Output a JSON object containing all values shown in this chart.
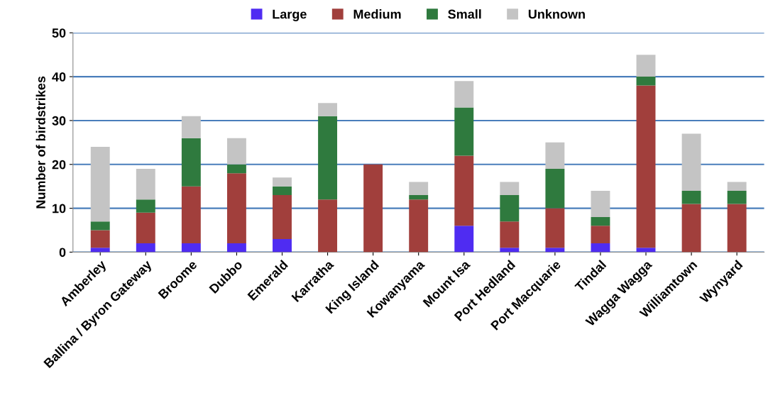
{
  "chart_data": {
    "type": "bar",
    "stacked": true,
    "ylabel": "Number of birdstrikes",
    "categories": [
      "Amberley",
      "Ballina / Byron Gateway",
      "Broome",
      "Dubbo",
      "Emerald",
      "Karratha",
      "King Island",
      "Kowanyama",
      "Mount Isa",
      "Port Hedland",
      "Port Macquarie",
      "Tindal",
      "Wagga Wagga",
      "Williamtown",
      "Wynyard"
    ],
    "series": [
      {
        "name": "Large",
        "color": "#4f2cf2",
        "values": [
          1,
          2,
          2,
          2,
          3,
          0,
          0,
          0,
          6,
          1,
          1,
          2,
          1,
          0,
          0
        ]
      },
      {
        "name": "Medium",
        "color": "#a13f3c",
        "values": [
          4,
          7,
          13,
          16,
          10,
          12,
          20,
          12,
          16,
          6,
          9,
          4,
          37,
          11,
          11
        ]
      },
      {
        "name": "Small",
        "color": "#2f7a3e",
        "values": [
          2,
          3,
          11,
          2,
          2,
          19,
          0,
          1,
          11,
          6,
          9,
          2,
          2,
          3,
          3
        ]
      },
      {
        "name": "Unknown",
        "color": "#c4c4c4",
        "values": [
          17,
          7,
          5,
          6,
          2,
          3,
          0,
          3,
          6,
          3,
          6,
          6,
          5,
          13,
          2
        ]
      }
    ],
    "ylim": [
      0,
      50
    ],
    "yticks": [
      0,
      10,
      20,
      30,
      40,
      50
    ],
    "grid": "y",
    "legend": "top"
  }
}
